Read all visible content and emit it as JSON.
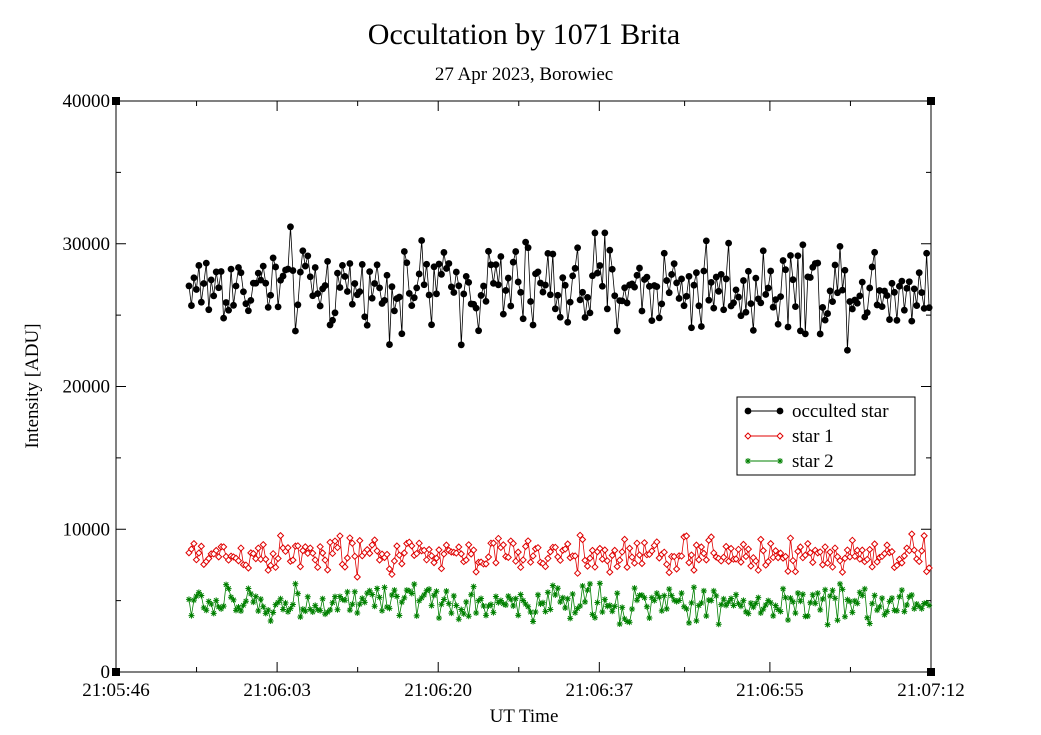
{
  "chart_data": {
    "type": "line",
    "title": "Occultation by 1071 Brita",
    "subtitle": "27 Apr 2023, Borowiec",
    "xlabel": "UT Time",
    "ylabel": "Intensity [ADU]",
    "xlim": [
      "21:05:46",
      "21:07:12"
    ],
    "ylim": [
      0,
      40000
    ],
    "x_tick_labels": [
      "21:05:46",
      "21:06:03",
      "21:06:20",
      "21:06:37",
      "21:06:55",
      "21:07:12"
    ],
    "y_tick_labels": [
      "0",
      "10000",
      "20000",
      "30000",
      "40000"
    ],
    "x_start_label": "21:05:53.7",
    "x_end_label": "21:07:11.8",
    "samples": 300,
    "grid": false,
    "legend_position": "right",
    "series": [
      {
        "name": "occulted star",
        "color": "#000000",
        "marker": "filled-circle",
        "mean": 27000,
        "min": 20500,
        "max": 33200,
        "spread": 2500
      },
      {
        "name": "star 1",
        "color": "#e00000",
        "marker": "open-diamond",
        "mean": 8200,
        "min": 5800,
        "max": 10800,
        "spread": 1000
      },
      {
        "name": "star 2",
        "color": "#008000",
        "marker": "star",
        "mean": 4800,
        "min": 2300,
        "max": 7200,
        "spread": 1000
      }
    ]
  }
}
